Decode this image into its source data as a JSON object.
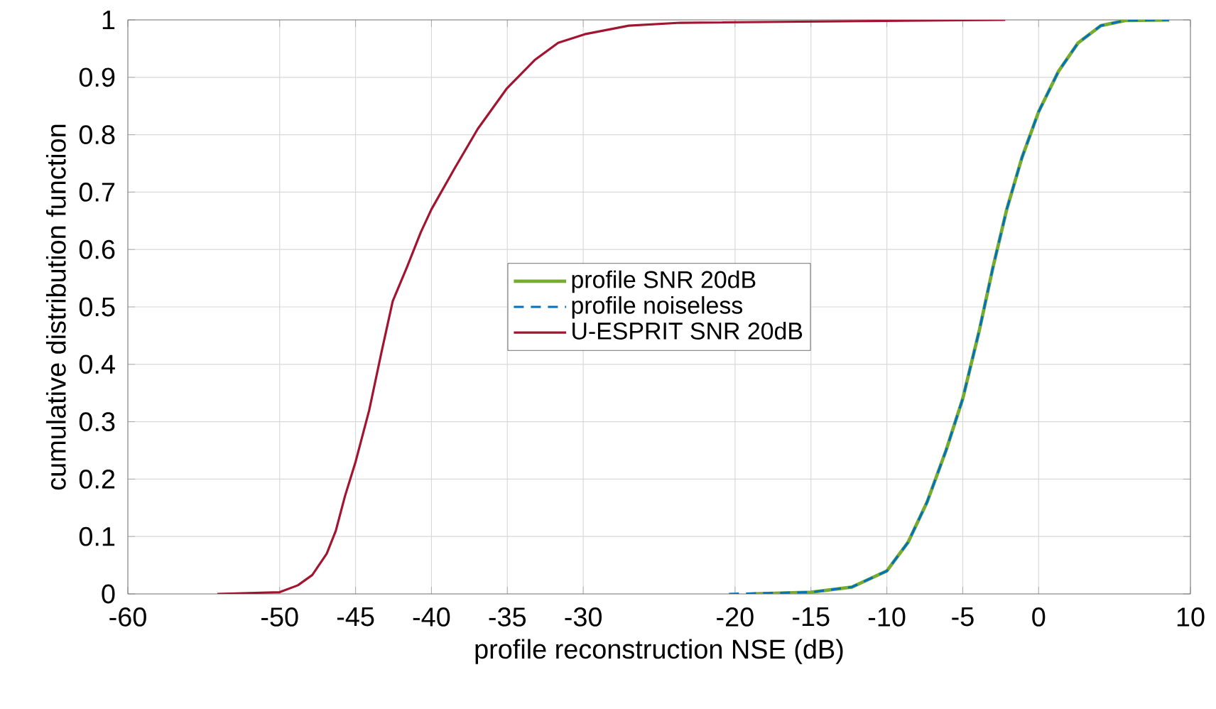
{
  "chart_data": {
    "type": "line",
    "xlabel": "profile reconstruction NSE (dB)",
    "ylabel": "cumulative distribution function",
    "xlim": [
      -60,
      10
    ],
    "xticks": [
      -60,
      -50,
      -45,
      -40,
      -35,
      -30,
      -20,
      -15,
      -10,
      -5,
      0,
      10
    ],
    "ylim": [
      0,
      1
    ],
    "yticks": [
      0,
      0.1,
      0.2,
      0.3,
      0.4,
      0.5,
      0.6,
      0.7,
      0.8,
      0.9,
      1
    ],
    "grid": true,
    "legend": "center",
    "line_style": "solid",
    "series": [
      {
        "name": "profile SNR 20dB",
        "color": "#77ac30",
        "x": [
          -18.7,
          -15,
          -12.3,
          -10,
          -8.6,
          -7.35,
          -6.1,
          -5,
          -3.9,
          -3,
          -2.1,
          -1.1,
          0,
          1.3,
          2.6,
          4.1,
          5.7,
          8.6
        ],
        "values": [
          0,
          0.003,
          0.012,
          0.04,
          0.09,
          0.16,
          0.25,
          0.34,
          0.46,
          0.57,
          0.67,
          0.76,
          0.84,
          0.91,
          0.96,
          0.99,
          0.999,
          1
        ]
      },
      {
        "name": "profile noiseless",
        "color": "#0072bd",
        "line_style": "dashed",
        "x": [
          -20.4,
          -15,
          -12.3,
          -10,
          -8.6,
          -7.35,
          -6.1,
          -5,
          -3.9,
          -3,
          -2.1,
          -1.1,
          0,
          1.3,
          2.6,
          4.1,
          5.7,
          8.6
        ],
        "values": [
          0,
          0.003,
          0.012,
          0.04,
          0.09,
          0.16,
          0.25,
          0.34,
          0.46,
          0.57,
          0.67,
          0.76,
          0.84,
          0.91,
          0.96,
          0.99,
          0.999,
          1
        ]
      },
      {
        "name": "U-ESPRIT SNR 20dB",
        "color": "#a2142f",
        "x": [
          -54.1,
          -50,
          -48.8,
          -47.85,
          -46.9,
          -46.3,
          -45.7,
          -45,
          -44.1,
          -43.3,
          -42.55,
          -41.6,
          -40.7,
          -40,
          -38.5,
          -36.95,
          -35.05,
          -33.2,
          -31.65,
          -29.9,
          -27,
          -23.6,
          -2.2
        ],
        "values": [
          0,
          0.003,
          0.015,
          0.033,
          0.07,
          0.11,
          0.17,
          0.23,
          0.32,
          0.42,
          0.51,
          0.57,
          0.63,
          0.67,
          0.74,
          0.81,
          0.88,
          0.93,
          0.96,
          0.975,
          0.99,
          0.995,
          1
        ]
      }
    ]
  }
}
